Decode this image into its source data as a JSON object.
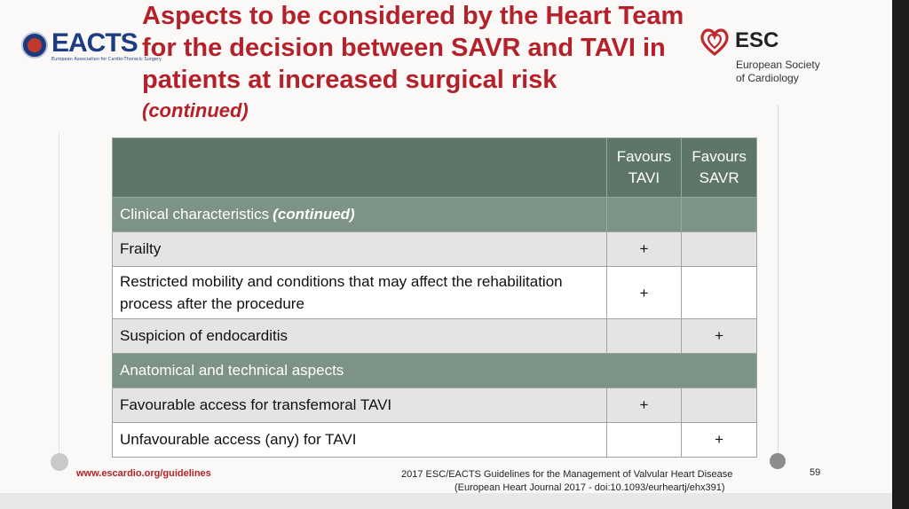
{
  "logos": {
    "eacts": {
      "name": "EACTS",
      "subtext": "European Association for Cardio-Thoracic Surgery"
    },
    "esc": {
      "name": "ESC",
      "line1": "European Society",
      "line2": "of Cardiology"
    }
  },
  "title": "Aspects to be considered by the Heart Team for the decision between SAVR and TAVI in patients at increased surgical risk",
  "subtitle": "(continued)",
  "table": {
    "headers": {
      "aspect": "",
      "tavi_line1": "Favours",
      "tavi_line2": "TAVI",
      "savr_line1": "Favours",
      "savr_line2": "SAVR"
    },
    "sections": [
      {
        "label": "Clinical characteristics",
        "suffix": "(continued)",
        "rows": [
          {
            "aspect": "Frailty",
            "tavi": "+",
            "savr": ""
          },
          {
            "aspect": "Restricted mobility and conditions that may affect the rehabilitation process after the procedure",
            "tavi": "+",
            "savr": ""
          },
          {
            "aspect": "Suspicion of endocarditis",
            "tavi": "",
            "savr": "+"
          }
        ]
      },
      {
        "label": "Anatomical and technical aspects",
        "suffix": "",
        "rows": [
          {
            "aspect": "Favourable access for transfemoral TAVI",
            "tavi": "+",
            "savr": ""
          },
          {
            "aspect": "Unfavourable access (any) for TAVI",
            "tavi": "",
            "savr": "+"
          }
        ]
      }
    ]
  },
  "footer": {
    "url": "www.escardio.org/guidelines",
    "reference_line1": "2017 ESC/EACTS Guidelines for the Management of Valvular Heart Disease",
    "reference_line2": "(European Heart Journal 2017 - doi:10.1093/eurheartj/ehx391)",
    "page_number": "59"
  },
  "colors": {
    "title_red": "#b5212a",
    "header_green": "#5e7668",
    "section_green": "#7c9386",
    "row_grey": "#e4e4e2"
  }
}
